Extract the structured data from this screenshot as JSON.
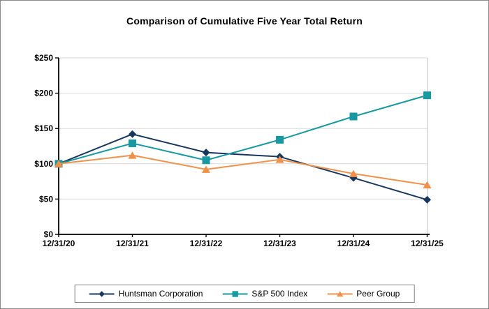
{
  "chart_data": {
    "type": "line",
    "title": "Comparison of Cumulative Five Year Total Return",
    "categories": [
      "12/31/20",
      "12/31/21",
      "12/31/22",
      "12/31/23",
      "12/31/24",
      "12/31/25"
    ],
    "series": [
      {
        "name": "Huntsman Corporation",
        "marker": "diamond",
        "color": "#17375E",
        "values": [
          100,
          142,
          116,
          110,
          80,
          49
        ]
      },
      {
        "name": "S&P 500 Index",
        "marker": "square",
        "color": "#1898A0",
        "values": [
          100,
          129,
          105,
          134,
          167,
          197
        ]
      },
      {
        "name": "Peer Group",
        "marker": "triangle",
        "color": "#F0914B",
        "values": [
          100,
          112,
          92,
          106,
          86,
          70
        ]
      }
    ],
    "ylim": [
      0,
      250
    ],
    "y_ticks": [
      0,
      50,
      100,
      150,
      200,
      250
    ],
    "y_tick_labels": [
      "$0",
      "$50",
      "$100",
      "$150",
      "$200",
      "$250"
    ],
    "grid": "horizontal",
    "legend_position": "bottom"
  },
  "colors": {
    "axis": "#000000",
    "gridline": "#D9D9D9",
    "plot_right_border": "#BFBFBF",
    "legend_border": "#808080",
    "page_border": "#8C8C8C",
    "background": "#FFFFFF"
  }
}
